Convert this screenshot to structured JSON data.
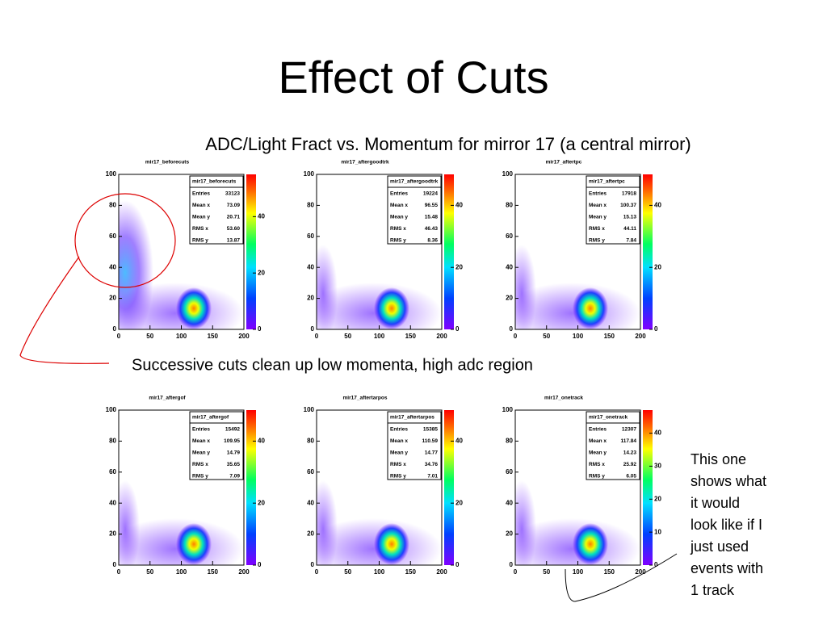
{
  "title": "Effect of Cuts",
  "subtitle": "ADC/Light Fract vs. Momentum for mirror 17 (a central mirror)",
  "caption": "Successive cuts  clean up  low momenta, high adc region",
  "note": [
    "This one",
    "shows what",
    "it would",
    "look like if I",
    "just used",
    "events with",
    "1 track"
  ],
  "plots": [
    {
      "title": "mir17_beforecuts",
      "stats_title": "mir17_beforecuts",
      "stats": [
        {
          "label": "Entries",
          "value": "33123"
        },
        {
          "label": "Mean x",
          "value": "73.09"
        },
        {
          "label": "Mean y",
          "value": "20.71"
        },
        {
          "label": "RMS x",
          "value": "53.60"
        },
        {
          "label": "RMS y",
          "value": "13.87"
        }
      ],
      "xlim": [
        0,
        200
      ],
      "xticks": [
        0,
        50,
        100,
        150,
        200
      ],
      "ylim": [
        0,
        100
      ],
      "yticks": [
        0,
        20,
        40,
        60,
        80,
        100
      ],
      "zlim": [
        0,
        55
      ],
      "zticks": [
        0,
        20,
        40
      ]
    },
    {
      "title": "mir17_aftergoodtrk",
      "stats_title": "mir17_aftergoodtrk",
      "stats": [
        {
          "label": "Entries",
          "value": "19224"
        },
        {
          "label": "Mean x",
          "value": "96.55"
        },
        {
          "label": "Mean y",
          "value": "15.48"
        },
        {
          "label": "RMS x",
          "value": "46.43"
        },
        {
          "label": "RMS y",
          "value": "8.36"
        }
      ],
      "xlim": [
        0,
        200
      ],
      "xticks": [
        0,
        50,
        100,
        150,
        200
      ],
      "ylim": [
        0,
        100
      ],
      "yticks": [
        0,
        20,
        40,
        60,
        80,
        100
      ],
      "zlim": [
        0,
        50
      ],
      "zticks": [
        0,
        20,
        40
      ]
    },
    {
      "title": "mir17_aftertpc",
      "stats_title": "mir17_aftertpc",
      "stats": [
        {
          "label": "Entries",
          "value": "17918"
        },
        {
          "label": "Mean x",
          "value": "100.37"
        },
        {
          "label": "Mean y",
          "value": "15.13"
        },
        {
          "label": "RMS x",
          "value": "44.11"
        },
        {
          "label": "RMS y",
          "value": "7.84"
        }
      ],
      "xlim": [
        0,
        200
      ],
      "xticks": [
        0,
        50,
        100,
        150,
        200
      ],
      "ylim": [
        0,
        100
      ],
      "yticks": [
        0,
        20,
        40,
        60,
        80,
        100
      ],
      "zlim": [
        0,
        50
      ],
      "zticks": [
        0,
        20,
        40
      ]
    },
    {
      "title": "mir17_aftergof",
      "stats_title": "mir17_aftergof",
      "stats": [
        {
          "label": "Entries",
          "value": "15492"
        },
        {
          "label": "Mean x",
          "value": "109.95"
        },
        {
          "label": "Mean y",
          "value": "14.79"
        },
        {
          "label": "RMS x",
          "value": "35.65"
        },
        {
          "label": "RMS y",
          "value": "7.09"
        }
      ],
      "xlim": [
        0,
        200
      ],
      "xticks": [
        0,
        50,
        100,
        150,
        200
      ],
      "ylim": [
        0,
        100
      ],
      "yticks": [
        0,
        20,
        40,
        60,
        80,
        100
      ],
      "zlim": [
        0,
        50
      ],
      "zticks": [
        0,
        20,
        40
      ]
    },
    {
      "title": "mir17_aftertarpos",
      "stats_title": "mir17_aftertarpos",
      "stats": [
        {
          "label": "Entries",
          "value": "15385"
        },
        {
          "label": "Mean x",
          "value": "110.59"
        },
        {
          "label": "Mean y",
          "value": "14.77"
        },
        {
          "label": "RMS x",
          "value": "34.76"
        },
        {
          "label": "RMS y",
          "value": "7.01"
        }
      ],
      "xlim": [
        0,
        200
      ],
      "xticks": [
        0,
        50,
        100,
        150,
        200
      ],
      "ylim": [
        0,
        100
      ],
      "yticks": [
        0,
        20,
        40,
        60,
        80,
        100
      ],
      "zlim": [
        0,
        50
      ],
      "zticks": [
        0,
        20,
        40
      ]
    },
    {
      "title": "mir17_onetrack",
      "stats_title": "mir17_onetrack",
      "stats": [
        {
          "label": "Entries",
          "value": "12307"
        },
        {
          "label": "Mean x",
          "value": "117.84"
        },
        {
          "label": "Mean y",
          "value": "14.23"
        },
        {
          "label": "RMS x",
          "value": "25.92"
        },
        {
          "label": "RMS y",
          "value": "6.05"
        }
      ],
      "xlim": [
        0,
        200
      ],
      "xticks": [
        0,
        50,
        100,
        150,
        200
      ],
      "ylim": [
        0,
        100
      ],
      "yticks": [
        0,
        20,
        40,
        60,
        80,
        100
      ],
      "zlim": [
        0,
        47
      ],
      "zticks": [
        0,
        10,
        20,
        30,
        40
      ]
    }
  ]
}
